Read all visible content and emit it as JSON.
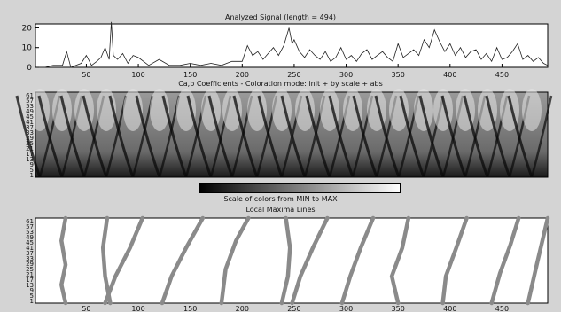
{
  "window": {
    "background": "#d4d4d4"
  },
  "signal_panel": {
    "title": "Analyzed Signal  (length = 494)",
    "chart_data": {
      "type": "line",
      "title": "Analyzed Signal  (length = 494)",
      "xlim": [
        1,
        494
      ],
      "ylim": [
        0,
        22
      ],
      "yticks": [
        "20",
        "10",
        "0"
      ],
      "xticks": [
        "50",
        "100",
        "150",
        "200",
        "250",
        "300",
        "350",
        "400",
        "450"
      ],
      "x": [
        1,
        10,
        18,
        27,
        31,
        35,
        45,
        50,
        55,
        60,
        64,
        68,
        72,
        74,
        76,
        80,
        85,
        90,
        95,
        100,
        110,
        120,
        130,
        140,
        150,
        160,
        170,
        180,
        190,
        200,
        205,
        210,
        215,
        220,
        225,
        230,
        235,
        240,
        245,
        248,
        250,
        255,
        260,
        265,
        270,
        275,
        280,
        285,
        290,
        295,
        300,
        305,
        310,
        315,
        320,
        325,
        330,
        335,
        340,
        345,
        350,
        355,
        360,
        365,
        370,
        375,
        380,
        385,
        390,
        395,
        400,
        405,
        410,
        415,
        420,
        425,
        430,
        435,
        440,
        445,
        450,
        455,
        460,
        465,
        470,
        475,
        480,
        485,
        490,
        494
      ],
      "y": [
        0,
        0,
        1,
        1,
        8,
        0,
        2,
        6,
        1,
        3,
        5,
        10,
        4,
        23,
        6,
        4,
        7,
        2,
        6,
        5,
        1,
        4,
        1,
        1,
        2,
        1,
        2,
        1,
        3,
        3,
        11,
        6,
        8,
        4,
        7,
        10,
        6,
        11,
        20,
        12,
        14,
        8,
        5,
        9,
        6,
        4,
        8,
        3,
        5,
        10,
        4,
        6,
        3,
        7,
        9,
        4,
        6,
        8,
        5,
        3,
        12,
        5,
        7,
        9,
        6,
        14,
        10,
        19,
        13,
        8,
        12,
        6,
        10,
        5,
        8,
        9,
        4,
        7,
        3,
        10,
        4,
        5,
        8,
        12,
        4,
        6,
        3,
        5,
        2,
        1
      ]
    }
  },
  "coeff_panel": {
    "title": "Ca,b Coefficients - Coloration mode: init + by scale + abs",
    "yticks": [
      "61",
      "57",
      "53",
      "49",
      "45",
      "41",
      "37",
      "33",
      "29",
      "25",
      "21",
      "17",
      "13",
      "9",
      "5",
      "1"
    ],
    "colorbar_label": "Scale of colors from MIN to MAX"
  },
  "maxima_panel": {
    "title": "Local Maxima Lines",
    "yticks": [
      "61",
      "57",
      "53",
      "49",
      "45",
      "41",
      "37",
      "33",
      "29",
      "25",
      "21",
      "17",
      "13",
      "9",
      "5",
      "1"
    ],
    "xticks": [
      "50",
      "100",
      "150",
      "200",
      "250",
      "300",
      "350",
      "400",
      "450"
    ],
    "line_color": "#8a8a8a",
    "lines": [
      [
        [
          30,
          1
        ],
        [
          26,
          14
        ],
        [
          30,
          28
        ],
        [
          26,
          45
        ],
        [
          30,
          61
        ]
      ],
      [
        [
          73,
          1
        ],
        [
          68,
          20
        ],
        [
          66,
          40
        ],
        [
          70,
          61
        ]
      ],
      [
        [
          68,
          1
        ],
        [
          78,
          20
        ],
        [
          92,
          40
        ],
        [
          104,
          61
        ]
      ],
      [
        [
          123,
          1
        ],
        [
          132,
          20
        ],
        [
          146,
          40
        ],
        [
          162,
          61
        ]
      ],
      [
        [
          180,
          1
        ],
        [
          184,
          25
        ],
        [
          194,
          45
        ],
        [
          206,
          61
        ]
      ],
      [
        [
          238,
          1
        ],
        [
          244,
          20
        ],
        [
          246,
          40
        ],
        [
          242,
          61
        ]
      ],
      [
        [
          248,
          1
        ],
        [
          256,
          20
        ],
        [
          268,
          40
        ],
        [
          282,
          61
        ]
      ],
      [
        [
          296,
          1
        ],
        [
          304,
          20
        ],
        [
          314,
          40
        ],
        [
          326,
          61
        ]
      ],
      [
        [
          350,
          1
        ],
        [
          344,
          20
        ],
        [
          354,
          40
        ],
        [
          360,
          61
        ]
      ],
      [
        [
          393,
          1
        ],
        [
          396,
          20
        ],
        [
          406,
          40
        ],
        [
          416,
          61
        ]
      ],
      [
        [
          440,
          1
        ],
        [
          448,
          22
        ],
        [
          458,
          42
        ],
        [
          466,
          61
        ]
      ],
      [
        [
          475,
          1
        ],
        [
          484,
          30
        ],
        [
          494,
          61
        ]
      ]
    ]
  }
}
